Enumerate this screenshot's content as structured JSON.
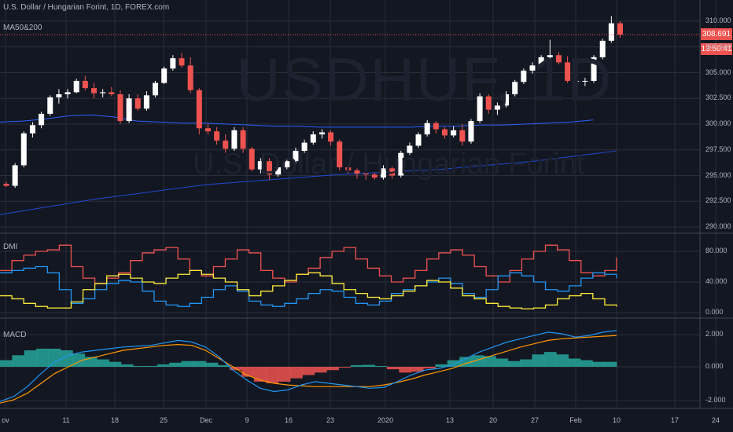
{
  "header": {
    "title": "U.S. Dollar / Hungarian Forint, 1D, FOREX.com",
    "ma_label": "MA50&200"
  },
  "watermark": {
    "symbol": "USDHUF, 1D",
    "name": "U.S. Dollar / Hungarian Forint"
  },
  "price": {
    "last": "308.691",
    "timer": "13:50:41"
  },
  "colors": {
    "up": "#ffffff",
    "down": "#ef5350",
    "ma50": "#2962ff",
    "ma200": "#1e4bd1",
    "dmi_plus": "#2196f3",
    "dmi_minus": "#ef5350",
    "adx": "#ffeb3b",
    "hist_pos": "#26a69a",
    "hist_neg": "#ef5350",
    "macd": "#2196f3",
    "signal": "#ff9800"
  },
  "panes": {
    "dmi_label": "DMI",
    "macd_label": "MACD"
  },
  "price_axis": [
    "310.000",
    "307.500",
    "305.000",
    "302.500",
    "300.000",
    "297.500",
    "295.000",
    "292.500",
    "290.000"
  ],
  "dmi_axis": [
    "80.000",
    "40.000",
    "0.000"
  ],
  "macd_axis": [
    "2.000",
    "0.000",
    "-2.000"
  ],
  "time_axis": [
    "ov",
    "11",
    "18",
    "25",
    "Dec",
    "9",
    "16",
    "23",
    "2020",
    "13",
    "20",
    "27",
    "Feb",
    "10",
    "17",
    "24"
  ],
  "chart_data": {
    "type": "candlestick",
    "candles": [
      [
        294.2,
        294.4,
        293.9,
        294.0
      ],
      [
        294.0,
        296.2,
        293.8,
        296.0
      ],
      [
        296.0,
        299.3,
        295.8,
        299.1
      ],
      [
        299.1,
        300.2,
        298.7,
        299.9
      ],
      [
        299.9,
        301.2,
        299.6,
        301.0
      ],
      [
        301.0,
        302.8,
        300.8,
        302.6
      ],
      [
        302.6,
        303.4,
        302.0,
        302.9
      ],
      [
        302.9,
        303.4,
        302.5,
        303.1
      ],
      [
        303.1,
        304.4,
        303.0,
        304.2
      ],
      [
        304.2,
        304.7,
        303.3,
        303.5
      ],
      [
        303.5,
        304.0,
        302.5,
        303.0
      ],
      [
        303.0,
        303.4,
        302.6,
        303.1
      ],
      [
        303.1,
        303.6,
        302.7,
        302.9
      ],
      [
        302.9,
        303.3,
        300.0,
        300.3
      ],
      [
        300.3,
        302.9,
        300.1,
        302.5
      ],
      [
        302.5,
        302.9,
        301.3,
        301.5
      ],
      [
        301.5,
        303.2,
        301.3,
        302.8
      ],
      [
        302.8,
        304.2,
        302.6,
        304.0
      ],
      [
        304.0,
        305.6,
        303.9,
        305.4
      ],
      [
        305.4,
        306.7,
        305.2,
        306.4
      ],
      [
        306.4,
        306.9,
        305.5,
        305.7
      ],
      [
        305.7,
        306.5,
        303.0,
        303.3
      ],
      [
        303.3,
        303.5,
        299.0,
        299.6
      ],
      [
        299.6,
        300.0,
        299.0,
        299.3
      ],
      [
        299.3,
        299.7,
        298.0,
        298.4
      ],
      [
        298.4,
        299.0,
        297.2,
        297.6
      ],
      [
        297.6,
        299.7,
        297.4,
        299.4
      ],
      [
        299.4,
        299.7,
        297.2,
        297.6
      ],
      [
        297.6,
        297.8,
        295.4,
        295.6
      ],
      [
        295.6,
        296.7,
        295.2,
        296.4
      ],
      [
        296.4,
        296.7,
        294.6,
        295.1
      ],
      [
        295.1,
        296.0,
        294.9,
        295.8
      ],
      [
        295.8,
        296.7,
        295.6,
        296.4
      ],
      [
        296.4,
        297.7,
        296.2,
        297.4
      ],
      [
        297.4,
        298.5,
        297.2,
        298.2
      ],
      [
        298.2,
        299.3,
        298.0,
        299.0
      ],
      [
        299.0,
        299.5,
        298.6,
        299.2
      ],
      [
        299.2,
        299.4,
        297.9,
        298.3
      ],
      [
        298.3,
        298.5,
        295.5,
        295.8
      ],
      [
        295.8,
        296.0,
        295.2,
        295.5
      ],
      [
        295.5,
        295.7,
        294.7,
        295.2
      ],
      [
        295.2,
        295.9,
        294.6,
        295.1
      ],
      [
        295.1,
        295.3,
        294.6,
        294.8
      ],
      [
        294.8,
        296.0,
        294.6,
        295.7
      ],
      [
        295.7,
        295.9,
        294.7,
        295.0
      ],
      [
        295.0,
        297.4,
        294.8,
        297.2
      ],
      [
        297.2,
        298.2,
        297.0,
        297.9
      ],
      [
        297.9,
        299.2,
        297.7,
        299.0
      ],
      [
        299.0,
        300.4,
        298.8,
        300.1
      ],
      [
        300.1,
        300.3,
        299.1,
        299.5
      ],
      [
        299.5,
        299.7,
        298.6,
        298.9
      ],
      [
        298.9,
        299.8,
        298.7,
        299.4
      ],
      [
        299.4,
        300.0,
        297.9,
        298.3
      ],
      [
        298.3,
        300.5,
        298.1,
        300.3
      ],
      [
        300.3,
        303.0,
        300.1,
        302.7
      ],
      [
        302.7,
        302.9,
        301.0,
        301.4
      ],
      [
        301.4,
        302.1,
        300.9,
        301.8
      ],
      [
        301.8,
        303.2,
        301.6,
        302.9
      ],
      [
        302.9,
        304.3,
        302.7,
        304.1
      ],
      [
        304.1,
        305.4,
        303.9,
        305.2
      ],
      [
        305.2,
        306.0,
        304.9,
        305.7
      ],
      [
        305.7,
        306.7,
        305.5,
        306.5
      ],
      [
        306.5,
        308.2,
        306.3,
        306.7
      ],
      [
        306.7,
        307.0,
        305.8,
        306.0
      ],
      [
        306.0,
        306.6,
        304.0,
        304.2
      ],
      [
        304.2,
        304.7,
        303.6,
        304.2
      ],
      [
        304.2,
        304.5,
        303.7,
        304.2
      ],
      [
        304.2,
        306.7,
        304.0,
        306.5
      ],
      [
        306.5,
        308.3,
        306.3,
        308.1
      ],
      [
        308.1,
        310.5,
        307.9,
        309.8
      ],
      [
        309.8,
        310.0,
        308.4,
        308.7
      ]
    ],
    "ma50_start_end": [
      [
        0,
        300.2
      ],
      [
        70,
        300.4
      ]
    ],
    "ma200_start_end": [
      [
        0,
        291.2
      ],
      [
        70,
        297.4
      ]
    ],
    "ylim": [
      290,
      311
    ]
  }
}
